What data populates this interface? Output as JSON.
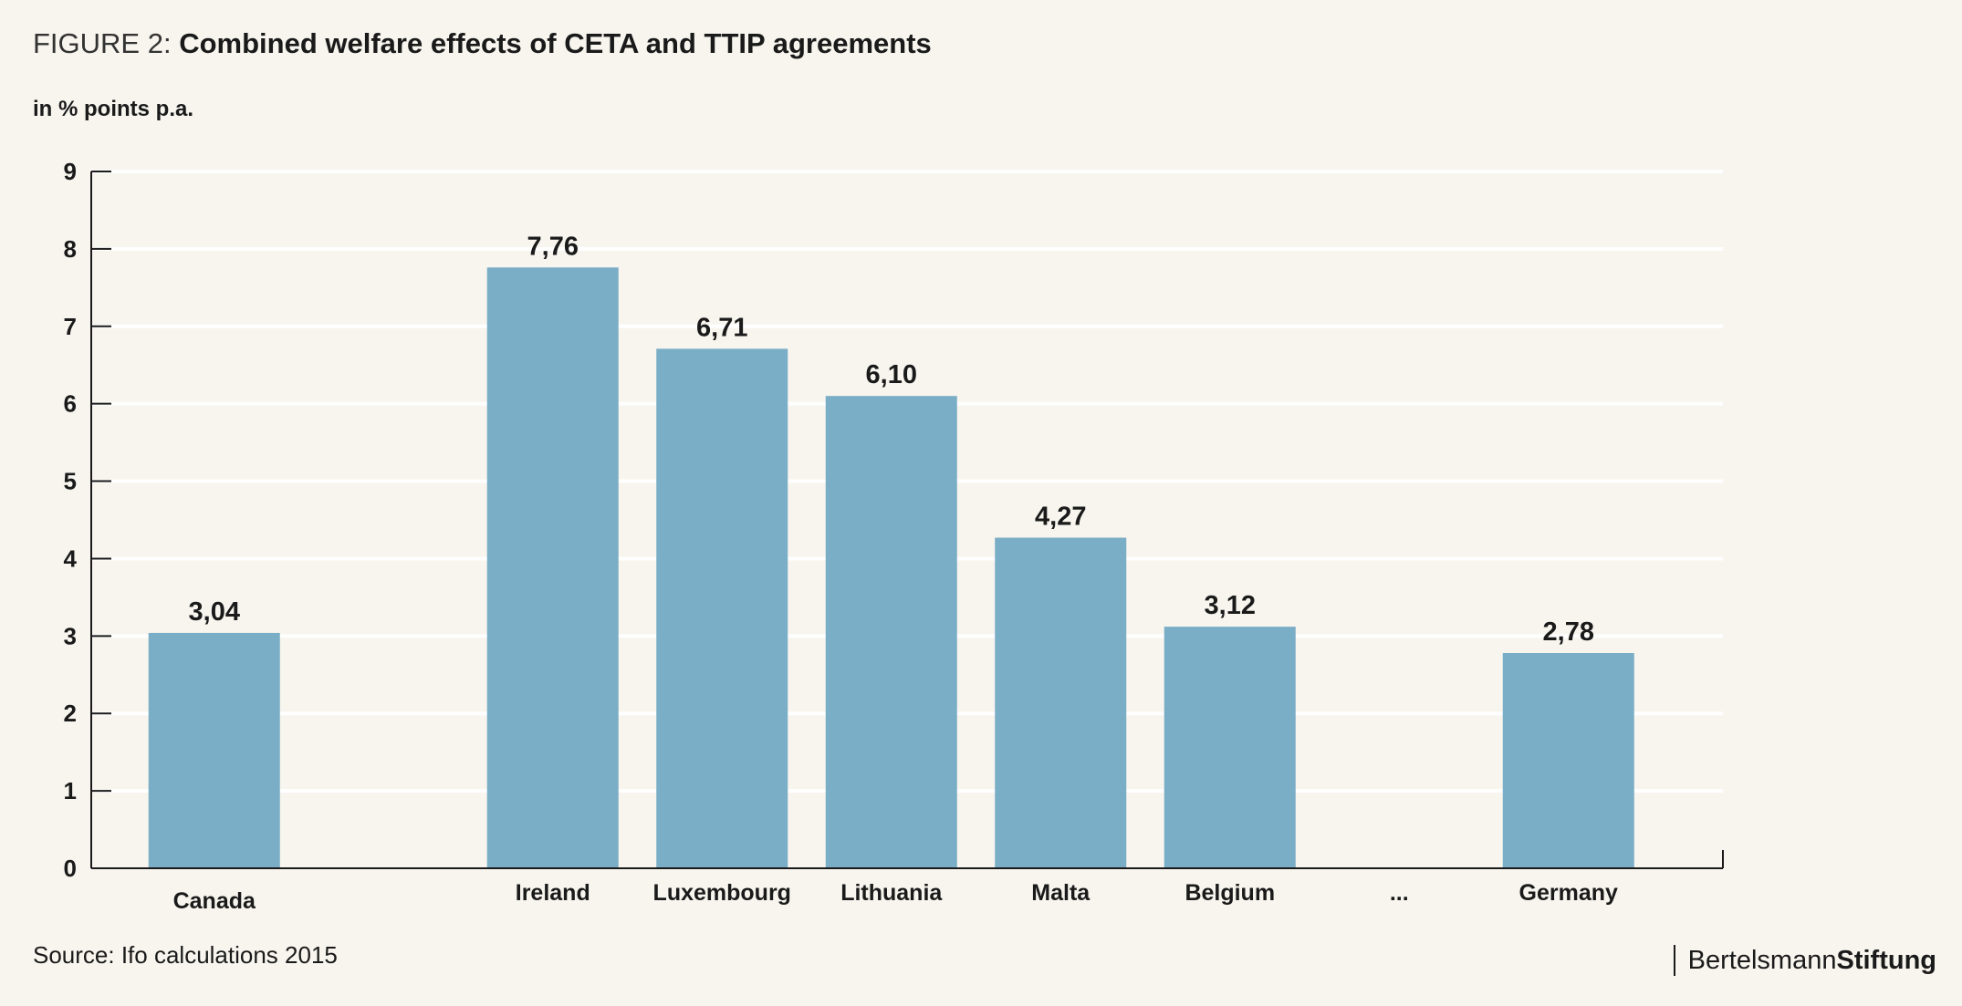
{
  "title": {
    "prefix": "FIGURE 2:",
    "main": "Combined welfare effects of CETA and TTIP agreements"
  },
  "unit_label": "in % points p.a.",
  "source": "Source: Ifo calculations 2015",
  "brand": {
    "part1": "Bertelsmann",
    "part2": "Stiftung"
  },
  "colors": {
    "bar": "#7aadc6",
    "grid": "#ffffff",
    "axis": "#1a1a1a",
    "background": "#f7f5ee"
  },
  "chart_data": {
    "type": "bar",
    "title": "Combined welfare effects of CETA and TTIP agreements",
    "ylabel": "in % points p.a.",
    "ylim": [
      0,
      9
    ],
    "yticks": [
      0,
      1,
      2,
      3,
      4,
      5,
      6,
      7,
      8,
      9
    ],
    "grid": true,
    "categories": [
      "Canada",
      "",
      "Ireland",
      "Luxembourg",
      "Lithuania",
      "Malta",
      "Belgium",
      "...",
      "Germany"
    ],
    "values": [
      3.04,
      null,
      7.76,
      6.71,
      6.1,
      4.27,
      3.12,
      null,
      2.78
    ],
    "data_labels": [
      "3,04",
      "",
      "7,76",
      "6,71",
      "6,10",
      "4,27",
      "3,12",
      "",
      "2,78"
    ]
  }
}
